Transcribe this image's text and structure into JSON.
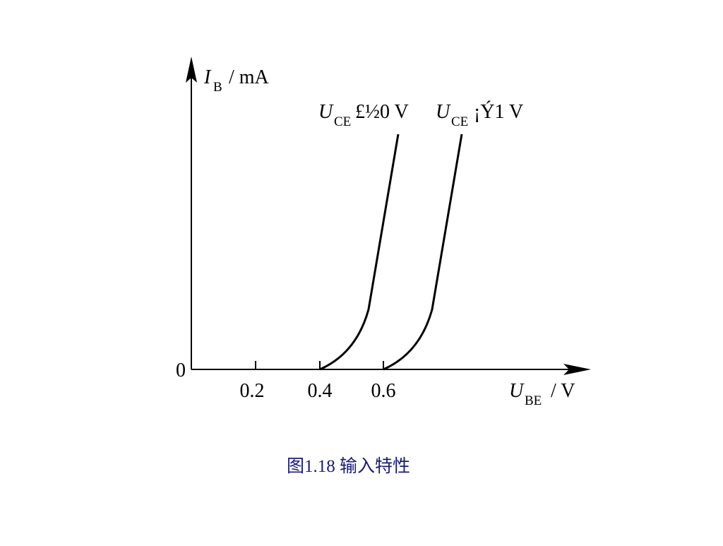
{
  "figure": {
    "y_axis": {
      "symbol": "I",
      "subscript": "B",
      "unit": "/ mA"
    },
    "x_axis": {
      "symbol": "U",
      "subscript": "BE",
      "unit": "/ V"
    },
    "origin": "0",
    "x_tick_labels": [
      "0.2",
      "0.4",
      "0.6"
    ],
    "curves": [
      {
        "symbol": "U",
        "subscript": "CE",
        "condition": "£½0 V"
      },
      {
        "symbol": "U",
        "subscript": "CE",
        "condition": "¡Ý1 V"
      }
    ],
    "caption": "图1.18  输入特性"
  }
}
